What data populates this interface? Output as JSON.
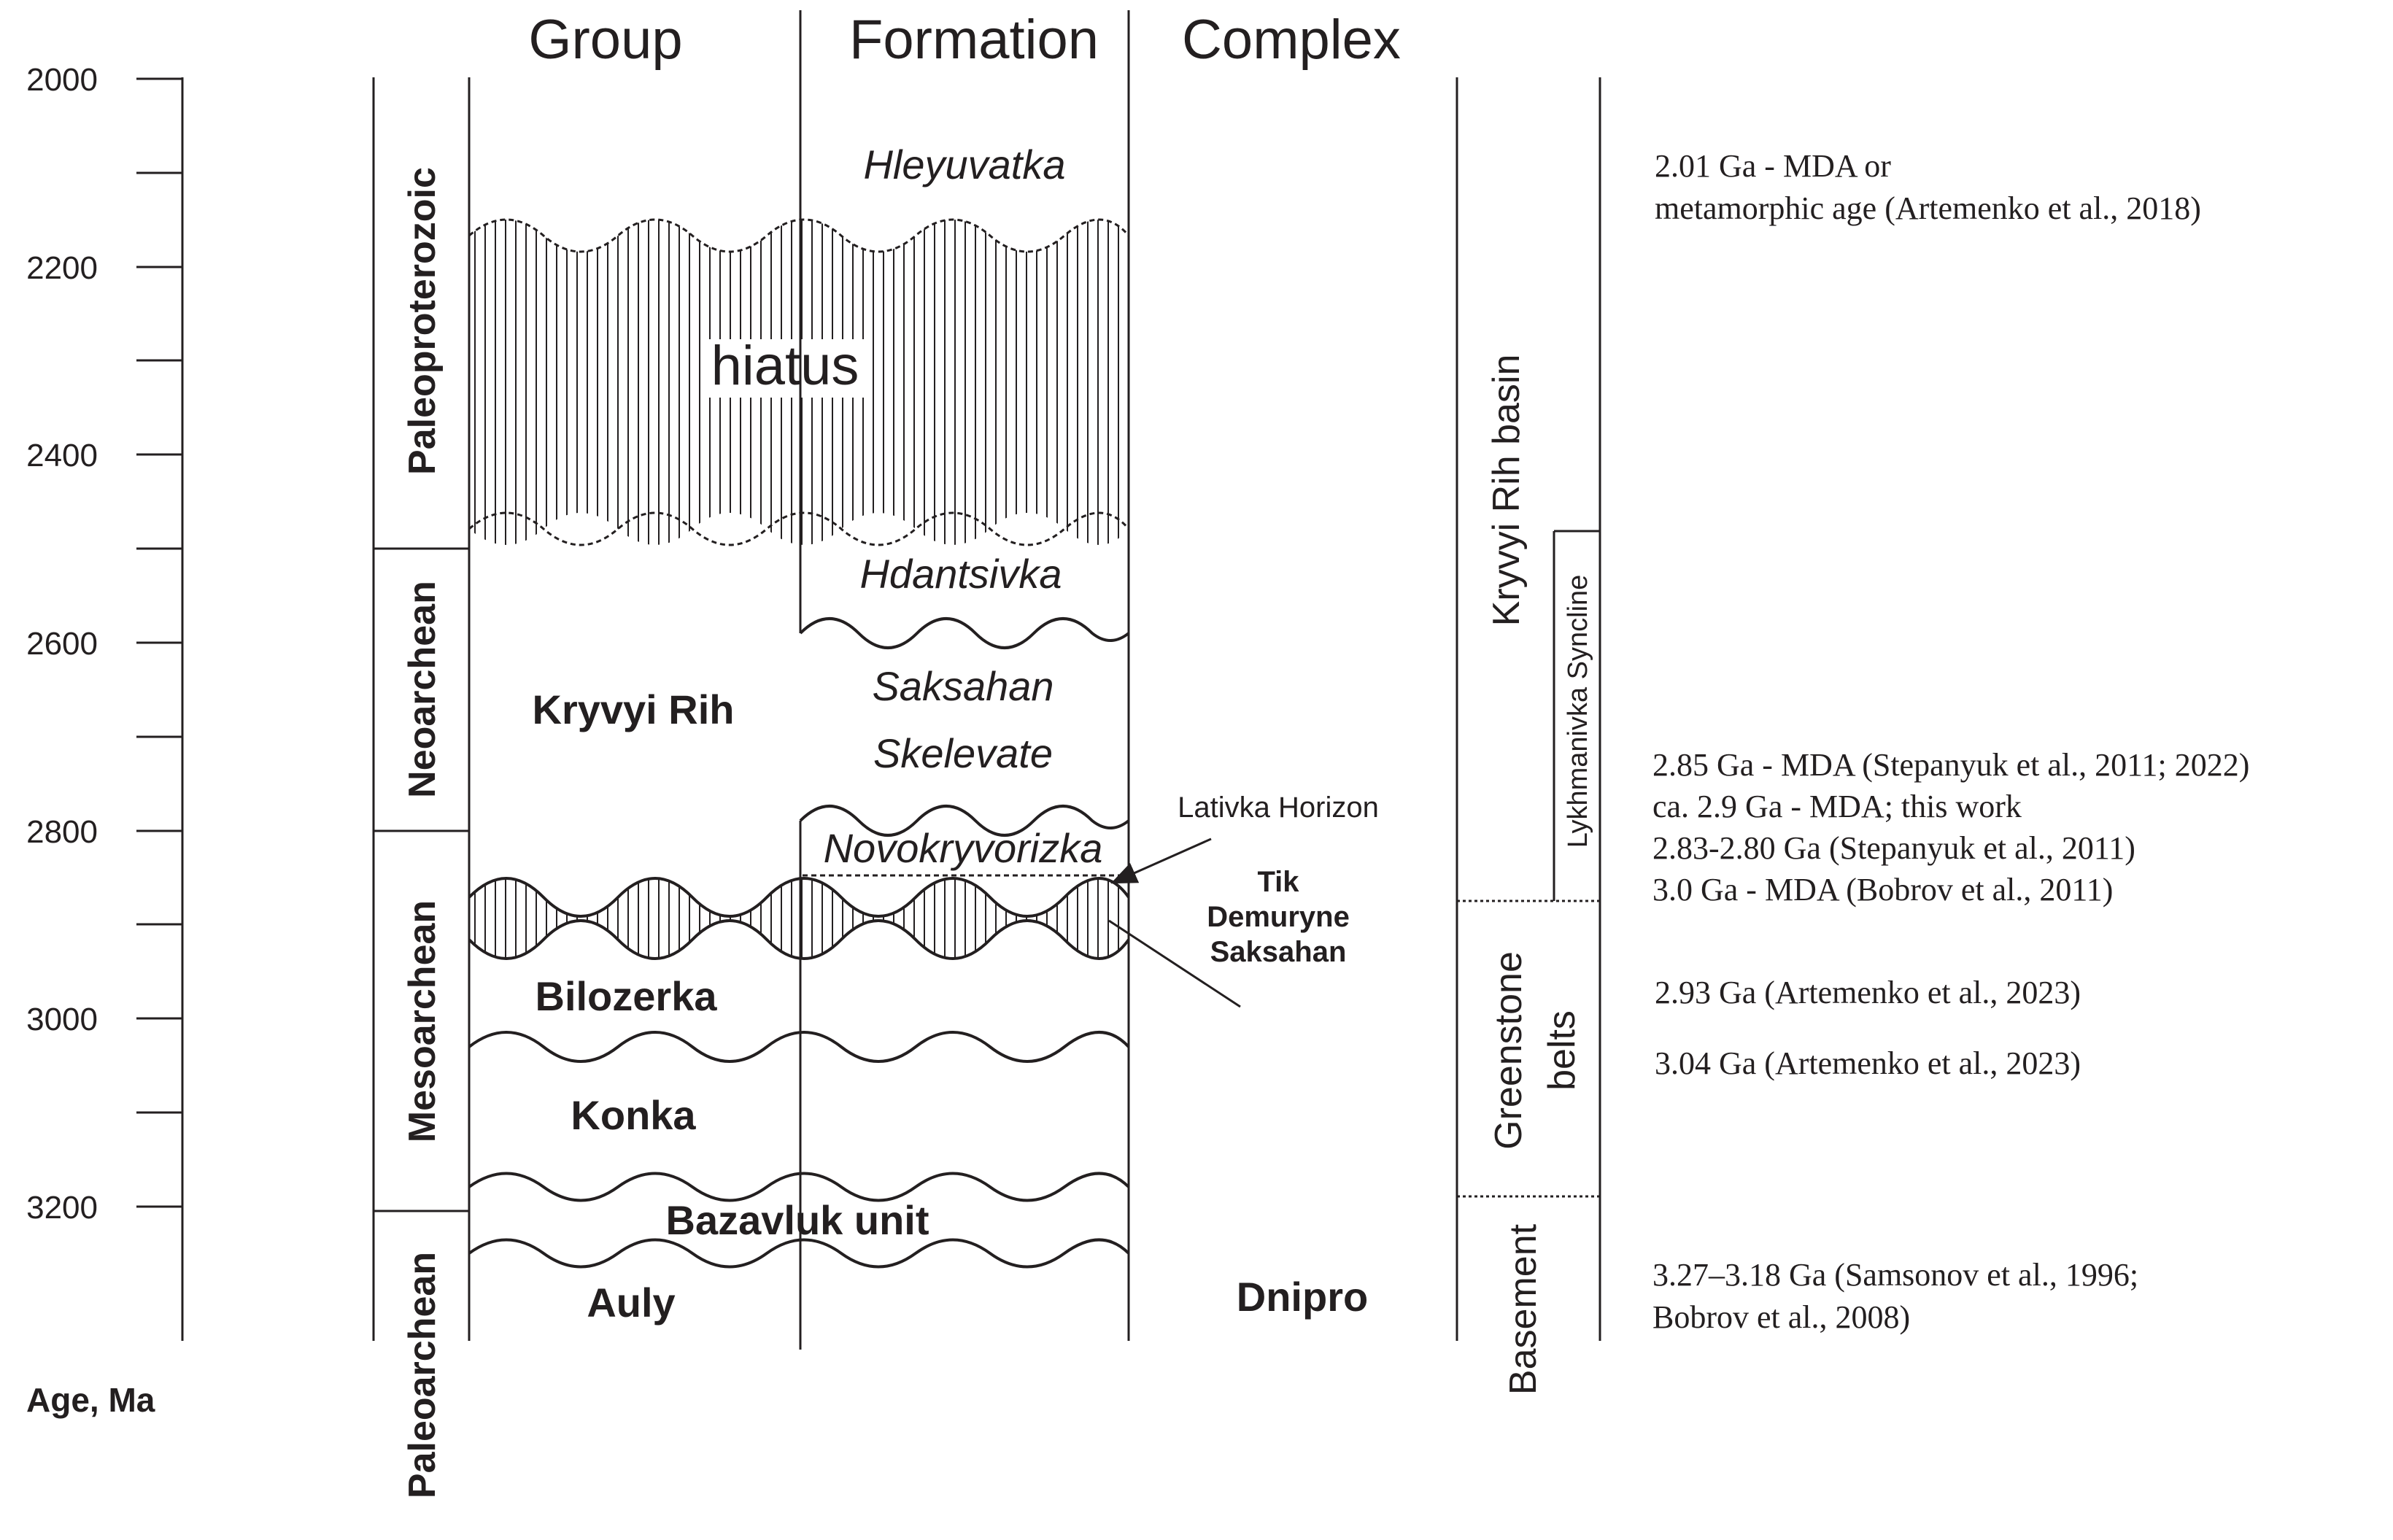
{
  "axis": {
    "label": "Age, Ma",
    "ticks": [
      "2000",
      "2200",
      "2400",
      "2600",
      "2800",
      "3000",
      "3200"
    ]
  },
  "eras": {
    "paleoproterozoic": "Paleoproterozoic",
    "neoarchean": "Neoarchean",
    "mesoarchean": "Mesoarchean",
    "paleoarchean": "Paleoarchean"
  },
  "headers": {
    "group": "Group",
    "formation": "Formation",
    "complex": "Complex"
  },
  "groups": {
    "kryvyi_rih": "Kryvyi Rih",
    "bilozerka": "Bilozerka",
    "konka": "Konka",
    "bazavluk": "Bazavluk unit",
    "auly": "Auly"
  },
  "formations": {
    "hleyuvatka": "Hleyuvatka",
    "hiatus": "hiatus",
    "hdantsivka": "Hdantsivka",
    "saksahan": "Saksahan",
    "skelevate": "Skelevate",
    "novokryvorizka": "Novokryvorizka"
  },
  "complex": {
    "dnipro": "Dnipro"
  },
  "annotations": {
    "lativka": "Lativka Horizon",
    "tik": "Tik",
    "demuryne": "Demuryne",
    "saksahan": "Saksahan"
  },
  "structures": {
    "kryvyi_rih_basin": "Kryvyi Rih basin",
    "lykhmanivka": "Lykhmanivka Syncline",
    "greenstone": "Greenstone",
    "belts": "belts",
    "basement": "Basement"
  },
  "ages": {
    "a1_line1": "2.01 Ga - MDA or",
    "a1_line2": "metamorphic age (Artemenko et al., 2018)",
    "a2": "2.85 Ga - MDA (Stepanyuk et al., 2011; 2022)",
    "a3": "ca. 2.9 Ga - MDA; this work",
    "a4": "2.83-2.80 Ga (Stepanyuk et al., 2011)",
    "a5": "3.0 Ga - MDA (Bobrov et al., 2011)",
    "a6": "2.93 Ga (Artemenko et al., 2023)",
    "a7": "3.04 Ga (Artemenko et al., 2023)",
    "a8_line1": "3.27–3.18 Ga (Samsonov et al., 1996;",
    "a8_line2": "Bobrov et al., 2008)"
  },
  "colors": {
    "ink": "#231f20",
    "background": "#ffffff"
  }
}
